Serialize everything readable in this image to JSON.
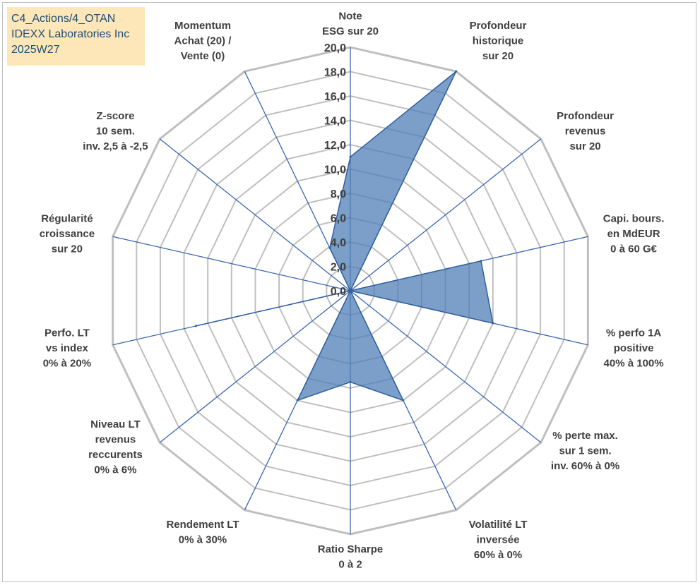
{
  "info_box": {
    "line1": "C4_Actions/4_OTAN",
    "line2": "IDEXX Laboratories Inc",
    "line3": "2025W27"
  },
  "chart_data": {
    "type": "radar",
    "rlim": [
      0,
      20
    ],
    "grid": true,
    "ticks": [
      "0,0",
      "2,0",
      "4,0",
      "6,0",
      "8,0",
      "10,0",
      "12,0",
      "14,0",
      "16,0",
      "18,0",
      "20,0"
    ],
    "categories": [
      [
        "Note",
        "ESG sur 20"
      ],
      [
        "Profondeur",
        "historique",
        "sur 20"
      ],
      [
        "Profondeur",
        "revenus",
        "sur 20"
      ],
      [
        "Capi. bours.",
        "en MdEUR",
        "0 à 60 G€"
      ],
      [
        "% perfo 1A",
        "positive",
        "40% à 100%"
      ],
      [
        "% perte max.",
        "sur 1 sem.",
        "inv. 60% à 0%"
      ],
      [
        "Volatilité LT",
        "inversée",
        "60% à 0%"
      ],
      [
        "Ratio Sharpe",
        "0 à 2"
      ],
      [
        "Rendement LT",
        "0% à 30%"
      ],
      [
        "Niveau LT",
        "revenus",
        "reccurents",
        "0% à 6%"
      ],
      [
        "Perfo. LT",
        "vs index",
        "0% à 20%"
      ],
      [
        "Régularité",
        "croissance",
        "sur 20"
      ],
      [
        "Z-score",
        "10 sem.",
        "inv. 2,5 à -2,5"
      ],
      [
        "Momentum",
        "Achat (20) /",
        "Vente (0)"
      ]
    ],
    "series": [
      {
        "values": [
          11.0,
          20.0,
          0.0,
          11.0,
          12.0,
          0.0,
          10.0,
          7.5,
          10.0,
          0.0,
          13.0,
          0.0,
          0.0,
          3.9
        ]
      }
    ],
    "colors": {
      "fill": "#4f7fb5",
      "fill_opacity": 0.75,
      "series_line": "#2f5f9f",
      "grid": "#bfbfbf",
      "spoke": "#3a66b0"
    }
  }
}
